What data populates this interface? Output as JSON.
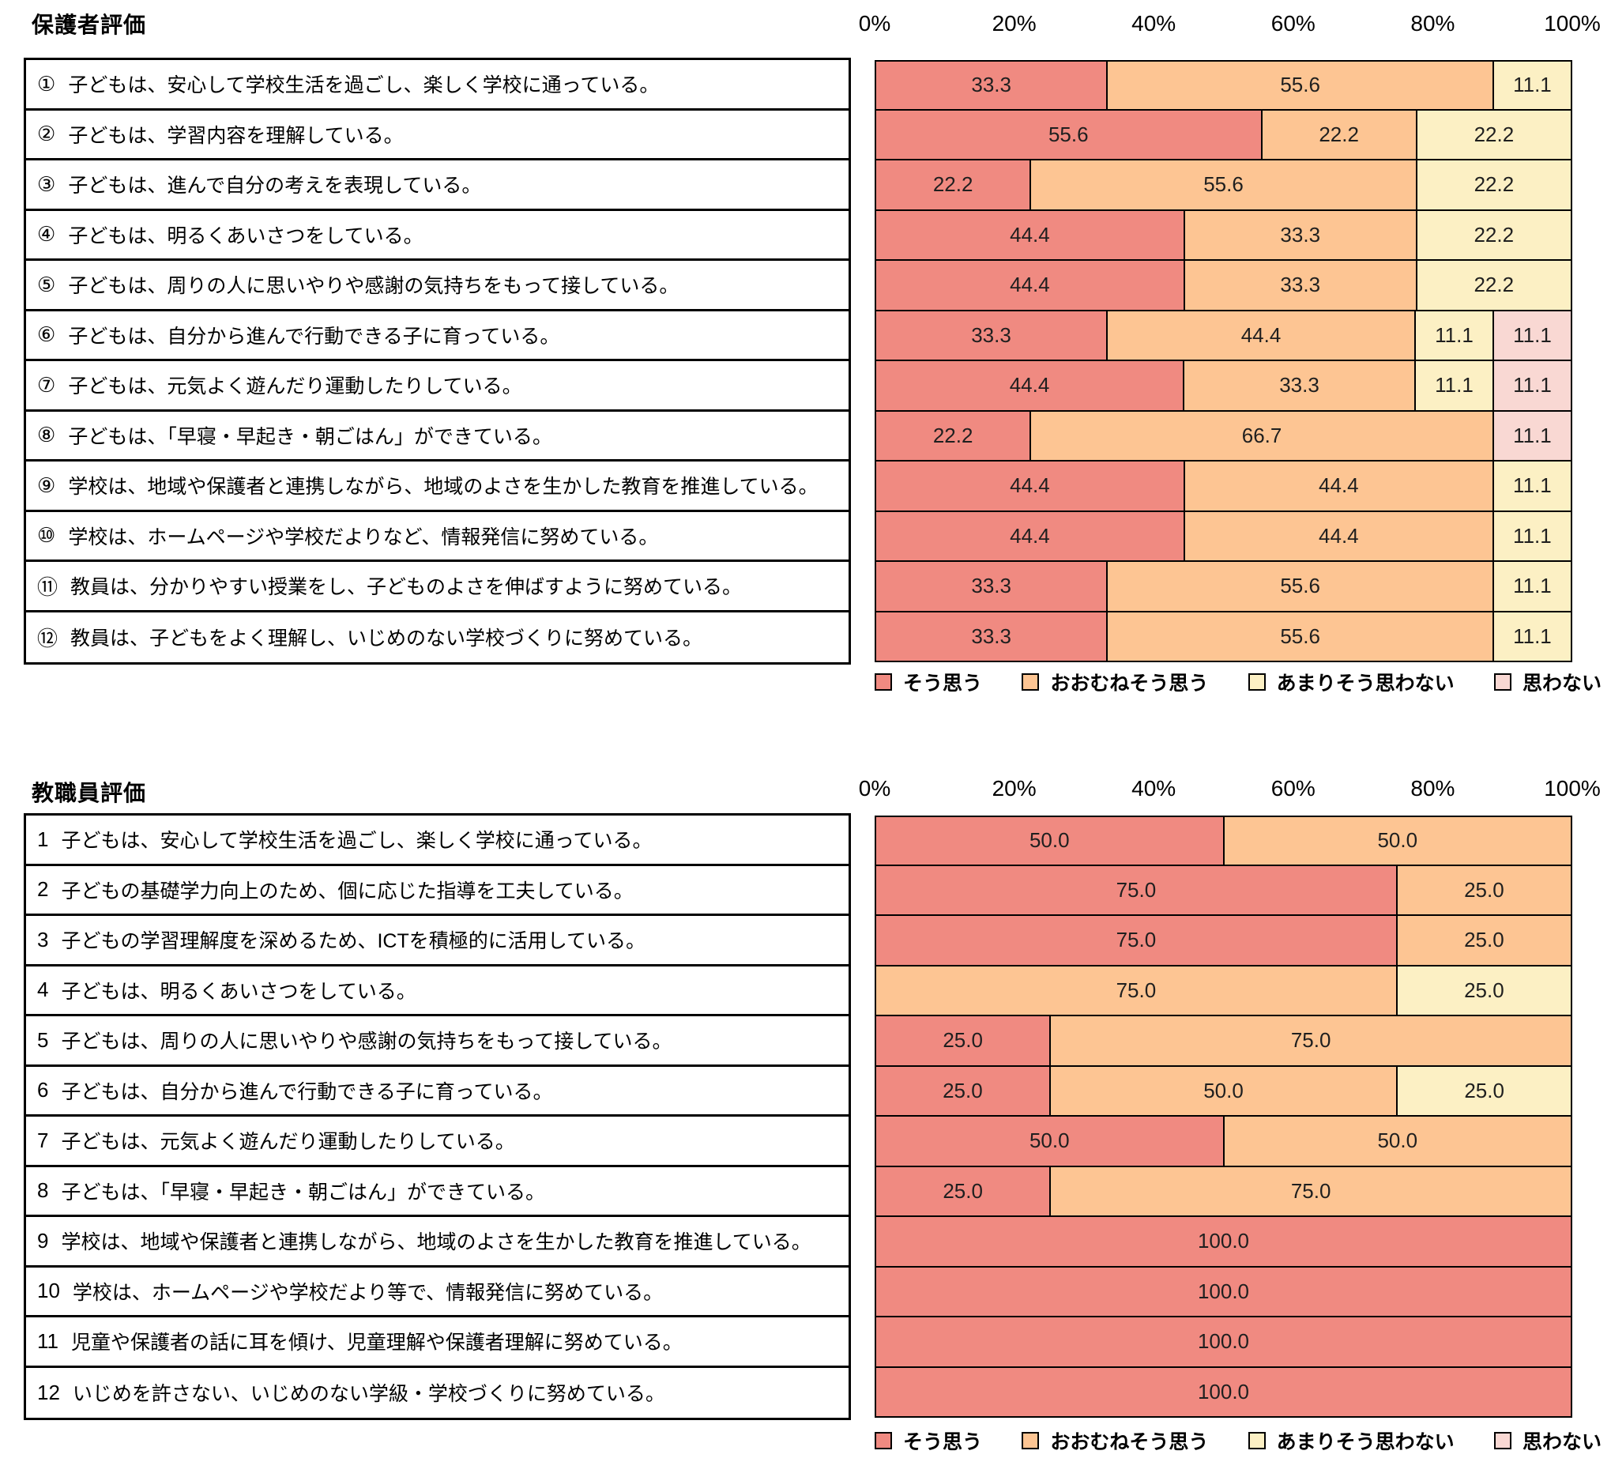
{
  "chart_data": [
    {
      "type": "bar",
      "variant": "stacked-horizontal",
      "title": "保護者評価",
      "xlim": [
        0,
        100
      ],
      "x_ticks": [
        "0%",
        "20%",
        "40%",
        "60%",
        "80%",
        "100%"
      ],
      "unit": "%",
      "value_label_format": "one-decimal",
      "legend_position": "bottom",
      "category_numbers": [
        "①",
        "②",
        "③",
        "④",
        "⑤",
        "⑥",
        "⑦",
        "⑧",
        "⑨",
        "⑩",
        "⑪",
        "⑫"
      ],
      "categories": [
        "子どもは、安心して学校生活を過ごし、楽しく学校に通っている。",
        "子どもは、学習内容を理解している。",
        "子どもは、進んで自分の考えを表現している。",
        "子どもは、明るくあいさつをしている。",
        "子どもは、周りの人に思いやりや感謝の気持ちをもって接している。",
        "子どもは、自分から進んで行動できる子に育っている。",
        "子どもは、元気よく遊んだり運動したりしている。",
        "子どもは、「早寝・早起き・朝ごはん」ができている。",
        "学校は、地域や保護者と連携しながら、地域のよさを生かした教育を推進している。",
        "学校は、ホームページや学校だよりなど、情報発信に努めている。",
        "教員は、分かりやすい授業をし、子どものよさを伸ばすように努めている。",
        "教員は、子どもをよく理解し、いじめのない学校づくりに努めている。"
      ],
      "series": [
        {
          "name": "そう思う",
          "color": "#F08A81",
          "values": [
            33.3,
            55.6,
            22.2,
            44.4,
            44.4,
            33.3,
            44.4,
            22.2,
            44.4,
            44.4,
            33.3,
            33.3
          ]
        },
        {
          "name": "おおむねそう思う",
          "color": "#FDC593",
          "values": [
            55.6,
            22.2,
            55.6,
            33.3,
            33.3,
            44.4,
            33.3,
            66.7,
            44.4,
            44.4,
            55.6,
            55.6
          ]
        },
        {
          "name": "あまりそう思わない",
          "color": "#FCF0C4",
          "values": [
            11.1,
            22.2,
            22.2,
            22.2,
            22.2,
            11.1,
            11.1,
            0,
            11.1,
            11.1,
            11.1,
            11.1
          ]
        },
        {
          "name": "思わない",
          "color": "#F9D8D3",
          "values": [
            0,
            0,
            0,
            0,
            0,
            11.1,
            11.1,
            11.1,
            0,
            0,
            0,
            0
          ]
        }
      ]
    },
    {
      "type": "bar",
      "variant": "stacked-horizontal",
      "title": "教職員評価",
      "xlim": [
        0,
        100
      ],
      "x_ticks": [
        "0%",
        "20%",
        "40%",
        "60%",
        "80%",
        "100%"
      ],
      "unit": "%",
      "value_label_format": "one-decimal",
      "legend_position": "bottom",
      "category_numbers": [
        "1",
        "2",
        "3",
        "4",
        "5",
        "6",
        "7",
        "8",
        "9",
        "10",
        "11",
        "12"
      ],
      "categories": [
        "子どもは、安心して学校生活を過ごし、楽しく学校に通っている。",
        "子どもの基礎学力向上のため、個に応じた指導を工夫している。",
        "子どもの学習理解度を深めるため、ICTを積極的に活用している。",
        "子どもは、明るくあいさつをしている。",
        "子どもは、周りの人に思いやりや感謝の気持ちをもって接している。",
        "子どもは、自分から進んで行動できる子に育っている。",
        "子どもは、元気よく遊んだり運動したりしている。",
        "子どもは、「早寝・早起き・朝ごはん」ができている。",
        "学校は、地域や保護者と連携しながら、地域のよさを生かした教育を推進している。",
        "学校は、ホームページや学校だより等で、情報発信に努めている。",
        "児童や保護者の話に耳を傾け、児童理解や保護者理解に努めている。",
        "いじめを許さない、いじめのない学級・学校づくりに努めている。"
      ],
      "series": [
        {
          "name": "そう思う",
          "color": "#F08A81",
          "values": [
            50.0,
            75.0,
            75.0,
            0,
            25.0,
            25.0,
            50.0,
            25.0,
            100.0,
            100.0,
            100.0,
            100.0
          ]
        },
        {
          "name": "おおむねそう思う",
          "color": "#FDC593",
          "values": [
            50.0,
            25.0,
            25.0,
            75.0,
            75.0,
            50.0,
            50.0,
            75.0,
            0,
            0,
            0,
            0
          ]
        },
        {
          "name": "あまりそう思わない",
          "color": "#FCF0C4",
          "values": [
            0,
            0,
            0,
            25.0,
            0,
            25.0,
            0,
            0,
            0,
            0,
            0,
            0
          ]
        },
        {
          "name": "思わない",
          "color": "#F9D8D3",
          "values": [
            0,
            0,
            0,
            0,
            0,
            0,
            0,
            0,
            0,
            0,
            0,
            0
          ]
        }
      ]
    }
  ]
}
